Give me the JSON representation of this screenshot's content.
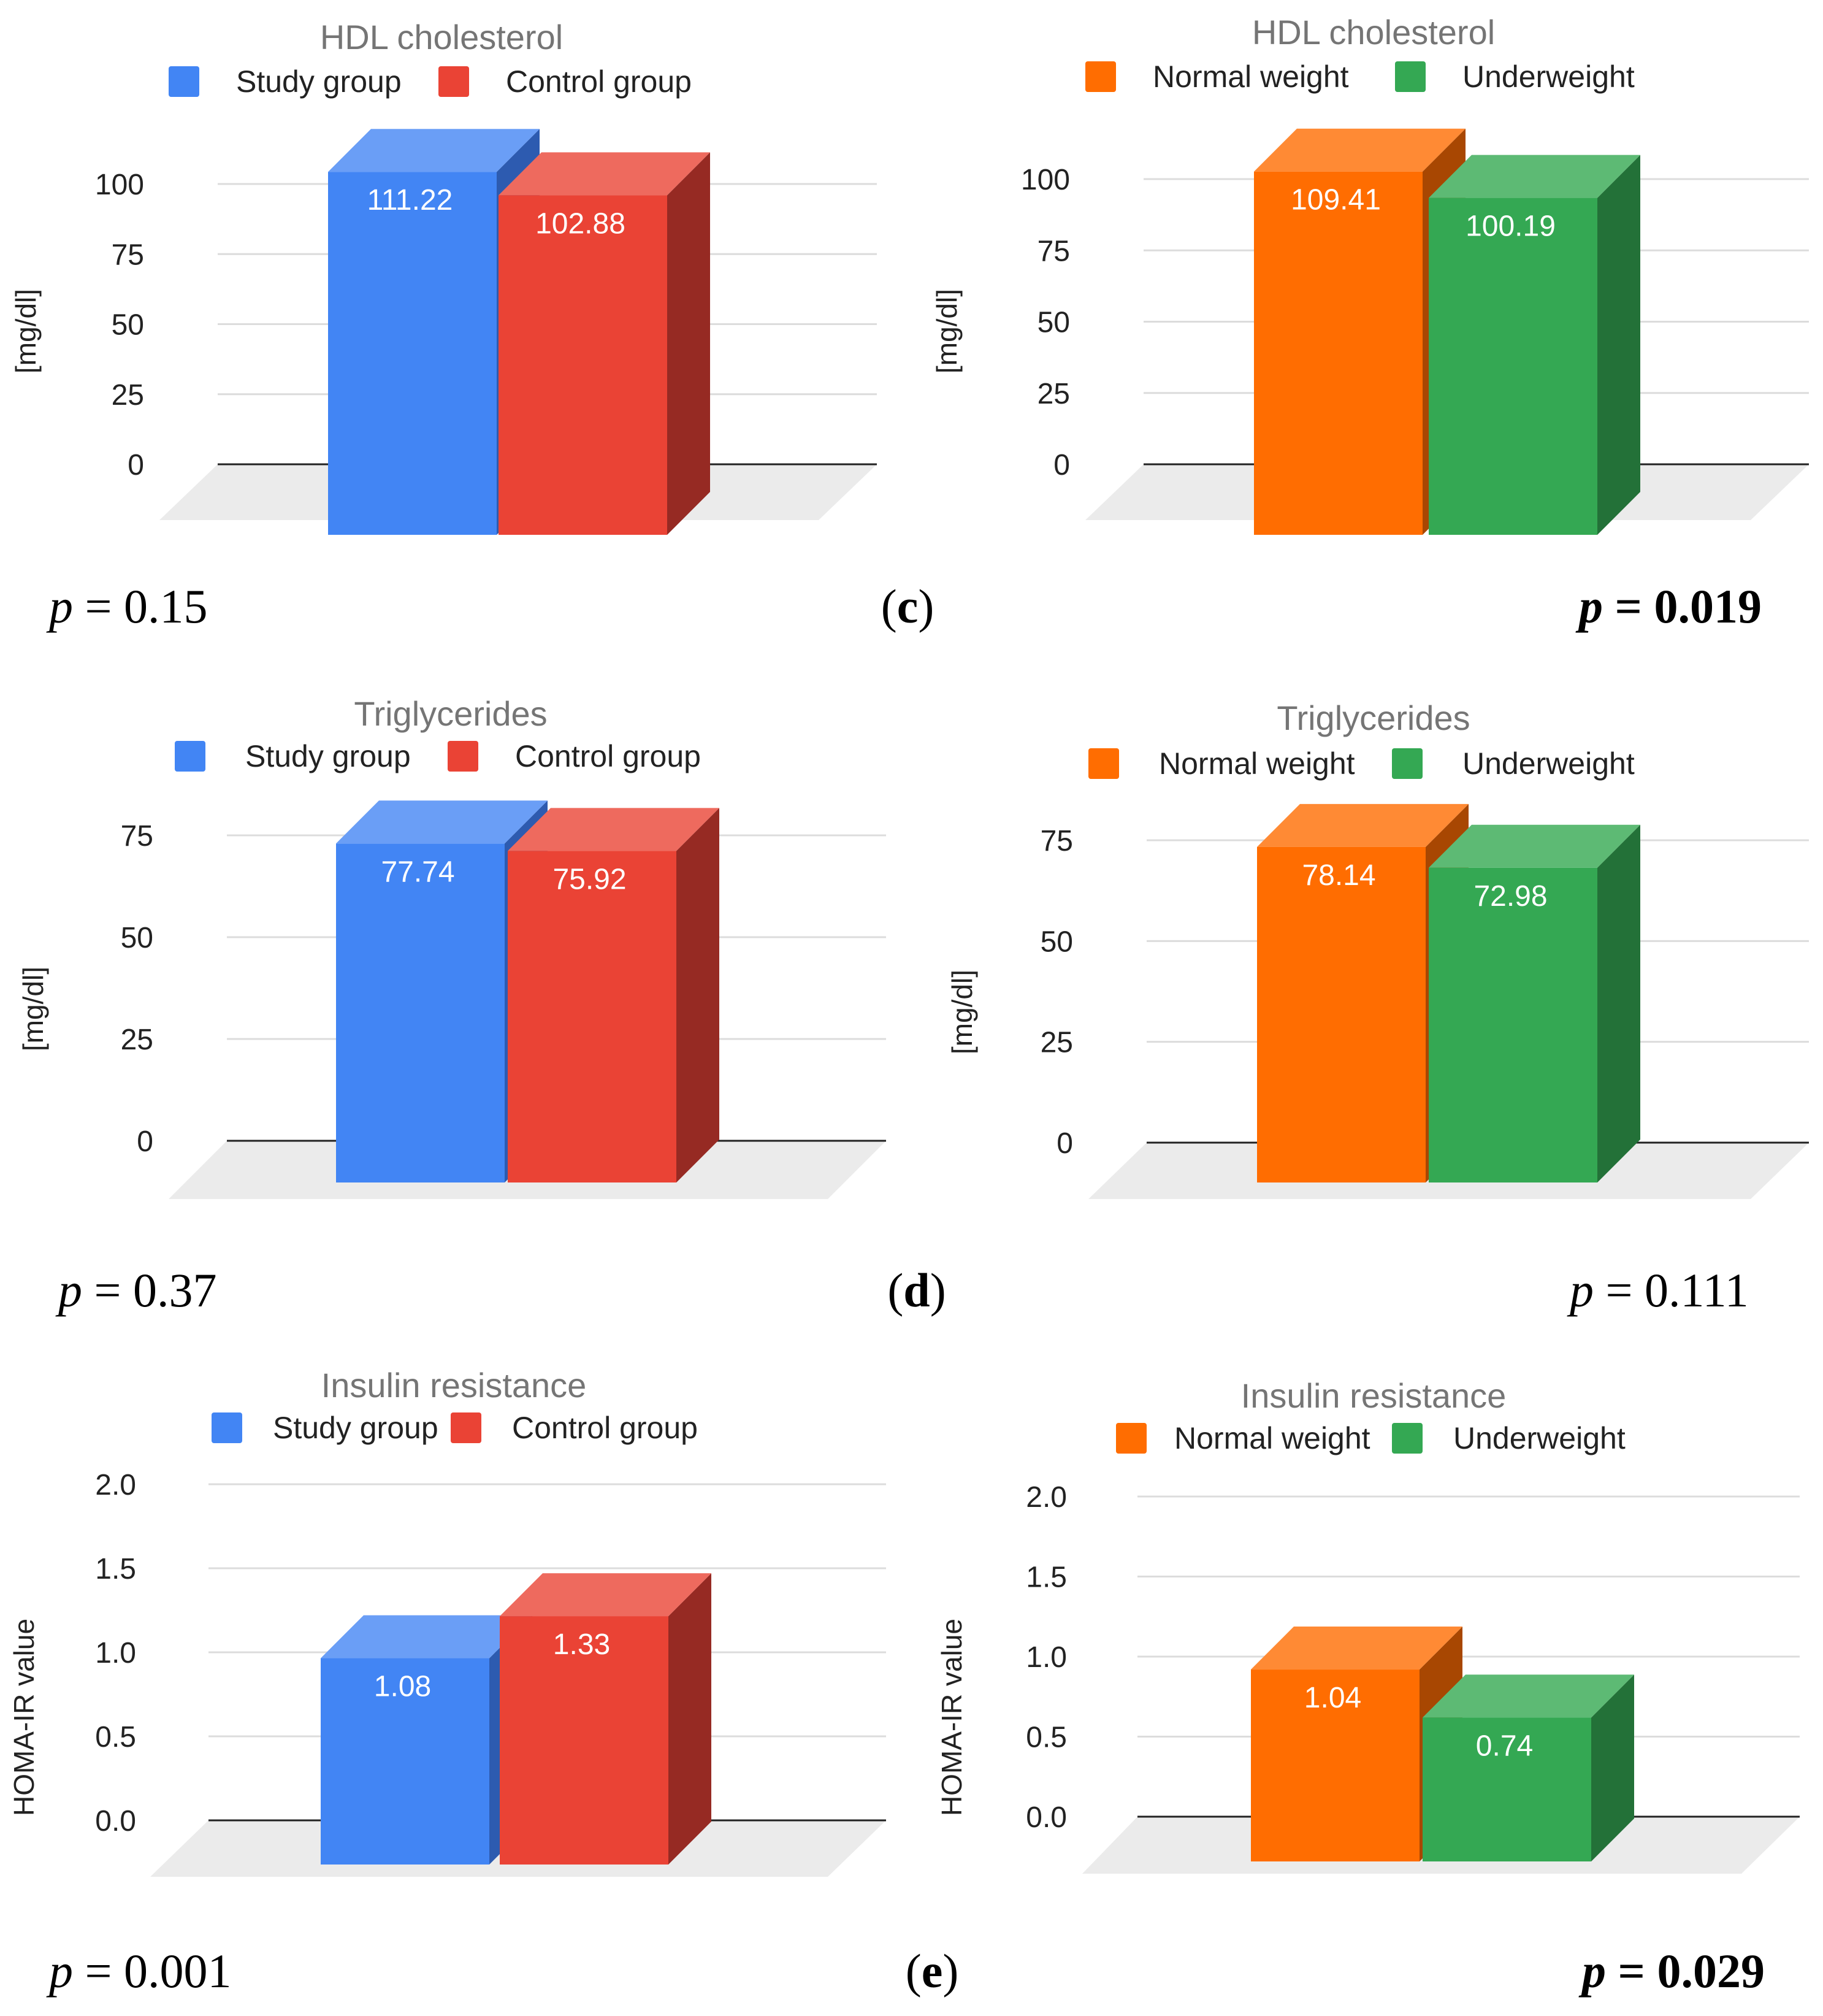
{
  "chart_data": [
    {
      "type": "bar",
      "title": "HDL cholesterol",
      "ylabel": "[mg/dl]",
      "ylim": [
        0,
        100
      ],
      "yticks": [
        "0",
        "25",
        "50",
        "75",
        "100"
      ],
      "series": [
        {
          "name": "Study group",
          "value": 111.22,
          "label": "111.22"
        },
        {
          "name": "Control group",
          "value": 102.88,
          "label": "102.88"
        }
      ],
      "p_value": "0.15",
      "p_bold": false
    },
    {
      "type": "bar",
      "title": "HDL cholesterol",
      "ylabel": "[mg/dl]",
      "ylim": [
        0,
        100
      ],
      "yticks": [
        "0",
        "25",
        "50",
        "75",
        "100"
      ],
      "series": [
        {
          "name": "Normal weight",
          "value": 109.41,
          "label": "109.41"
        },
        {
          "name": "Underweight",
          "value": 100.19,
          "label": "100.19"
        }
      ],
      "p_value": "0.019",
      "p_bold": true
    },
    {
      "type": "bar",
      "title": "Triglycerides",
      "ylabel": "[mg/dl]",
      "ylim": [
        0,
        75
      ],
      "yticks": [
        "0",
        "25",
        "50",
        "75"
      ],
      "series": [
        {
          "name": "Study group",
          "value": 77.74,
          "label": "77.74"
        },
        {
          "name": "Control group",
          "value": 75.92,
          "label": "75.92"
        }
      ],
      "p_value": "0.37",
      "p_bold": false
    },
    {
      "type": "bar",
      "title": "Triglycerides",
      "ylabel": "[mg/dl]",
      "ylim": [
        0,
        75
      ],
      "yticks": [
        "0",
        "25",
        "50",
        "75"
      ],
      "series": [
        {
          "name": "Normal weight",
          "value": 78.14,
          "label": "78.14"
        },
        {
          "name": "Underweight",
          "value": 72.98,
          "label": "72.98"
        }
      ],
      "p_value": "0.111",
      "p_bold": false
    },
    {
      "type": "bar",
      "title": "Insulin resistance",
      "ylabel": "HOMA-IR value",
      "ylim": [
        0,
        2
      ],
      "yticks": [
        "0.0",
        "0.5",
        "1.0",
        "1.5",
        "2.0"
      ],
      "series": [
        {
          "name": "Study group",
          "value": 1.08,
          "label": "1.08"
        },
        {
          "name": "Control group",
          "value": 1.33,
          "label": "1.33"
        }
      ],
      "p_value": "0.001",
      "p_bold": false
    },
    {
      "type": "bar",
      "title": "Insulin resistance",
      "ylabel": "HOMA-IR value",
      "ylim": [
        0,
        2
      ],
      "yticks": [
        "0.0",
        "0.5",
        "1.0",
        "1.5",
        "2.0"
      ],
      "series": [
        {
          "name": "Normal weight",
          "value": 1.04,
          "label": "1.04"
        },
        {
          "name": "Underweight",
          "value": 0.74,
          "label": "0.74"
        }
      ],
      "p_value": "0.029",
      "p_bold": true
    }
  ],
  "p_prefix": "p",
  "p_equals": " = ",
  "panel_labels": [
    "(c)",
    "(d)",
    "(e)"
  ],
  "colors": {
    "Study group": {
      "front": "#4285F4",
      "top": "#6A9EF6",
      "side": "#2D5BB0"
    },
    "Control group": {
      "front": "#EA4335",
      "top": "#EE6A5E",
      "side": "#962A23"
    },
    "Normal weight": {
      "front": "#FF6D01",
      "top": "#FF8A34",
      "side": "#A84702"
    },
    "Underweight": {
      "front": "#34A853",
      "top": "#5DBA74",
      "side": "#237138"
    },
    "grid": "#DCDCDC",
    "floor": "#EBEBEB",
    "axis": "#222222"
  }
}
